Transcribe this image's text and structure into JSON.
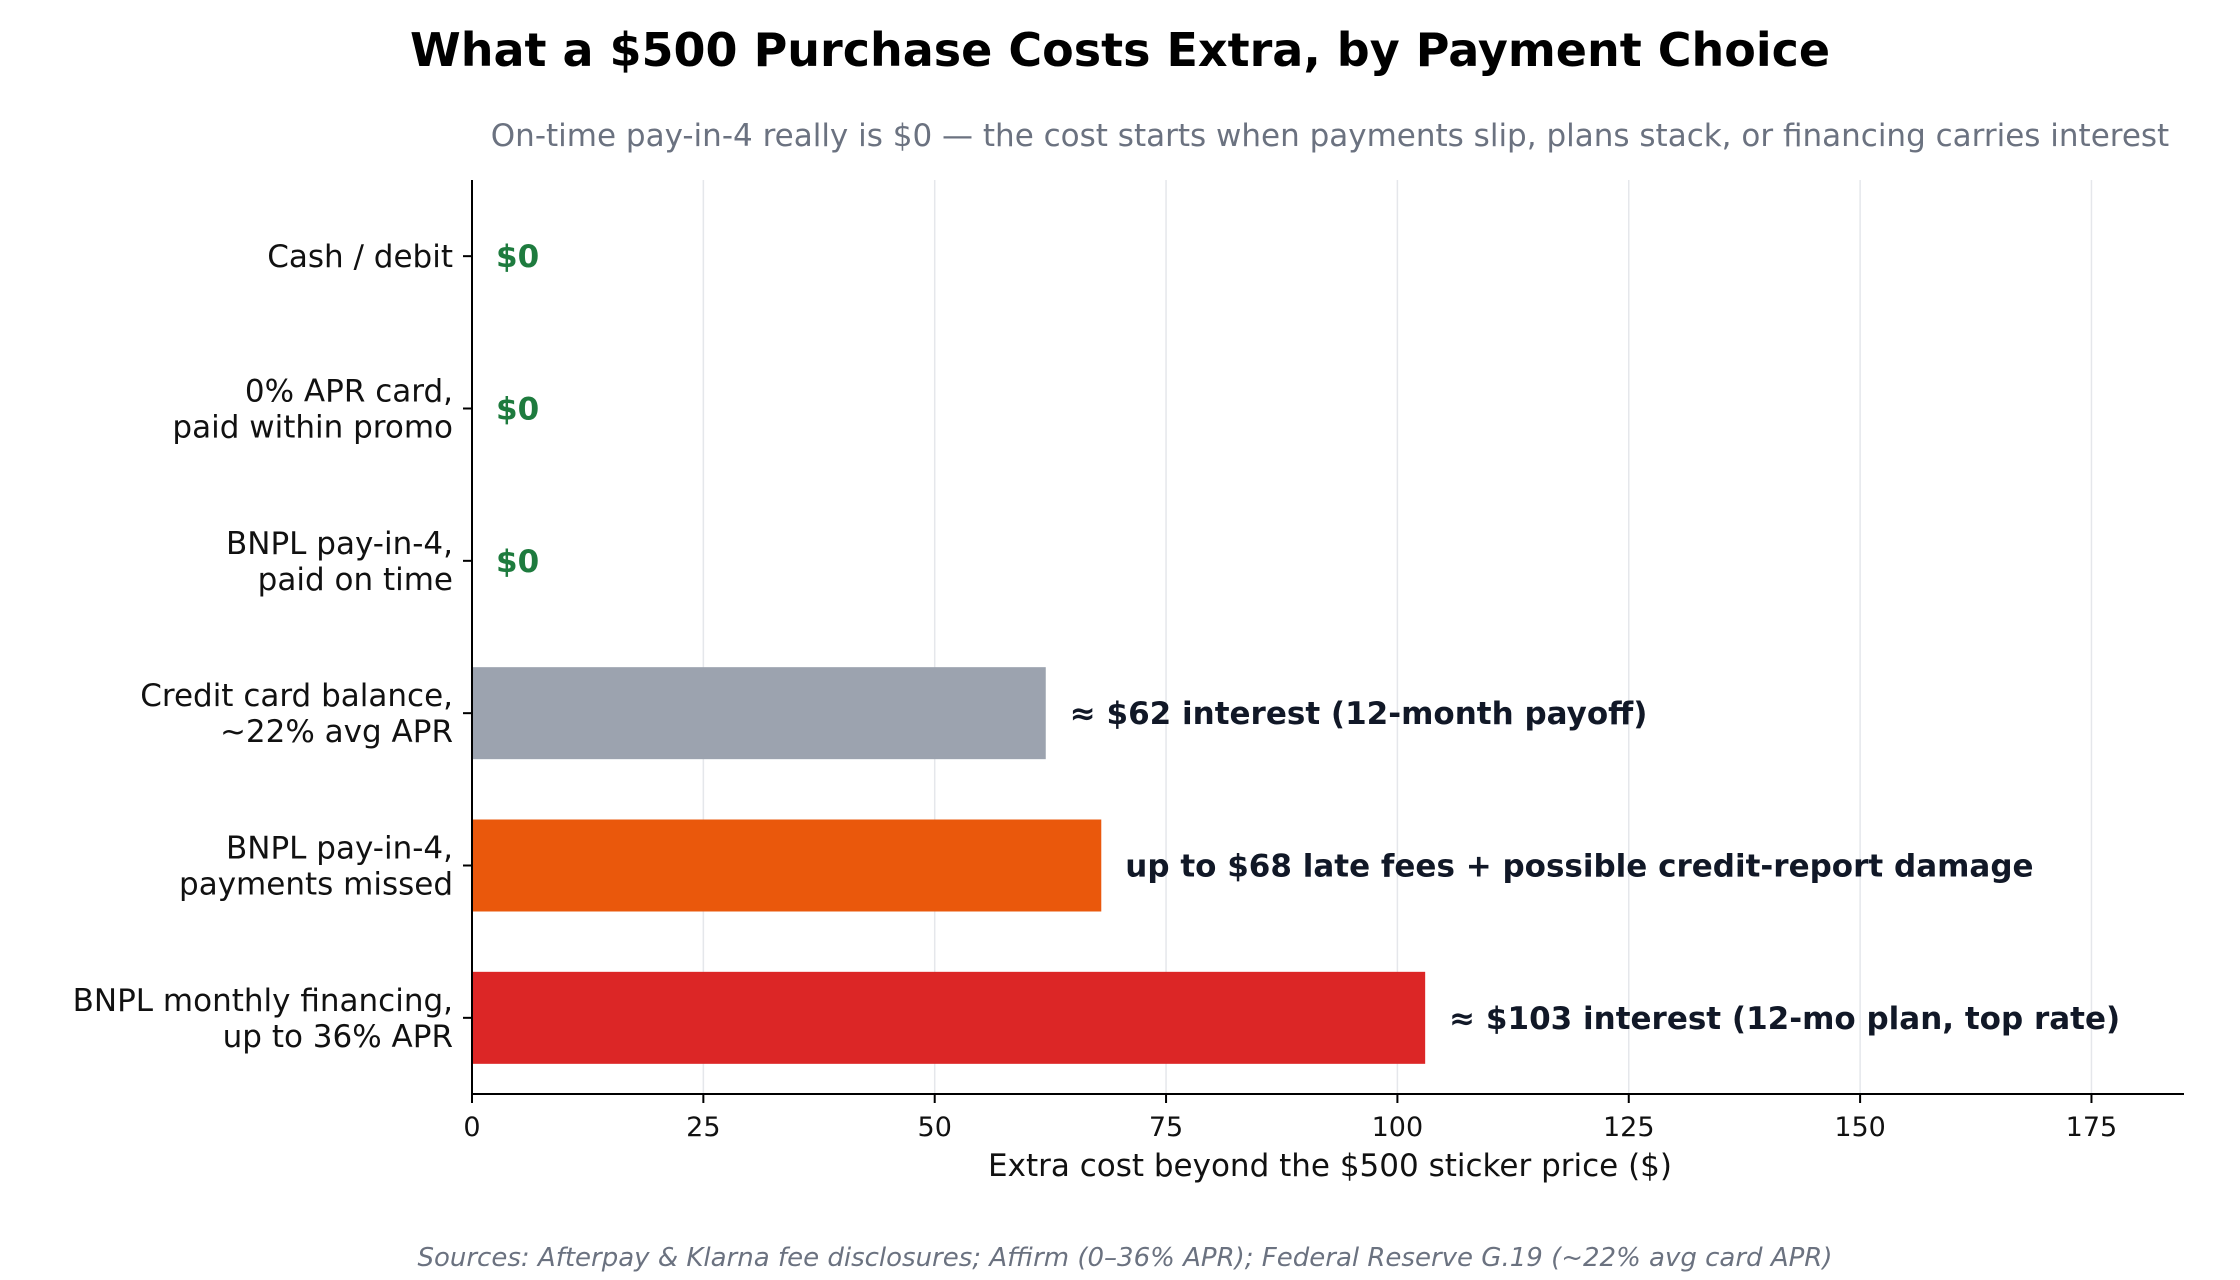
{
  "chart_data": {
    "type": "bar",
    "orientation": "horizontal",
    "title": "What a $500 Purchase Costs Extra, by Payment Choice",
    "subtitle": "On-time pay-in-4 really is $0 — the cost starts when payments slip, plans stack, or financing carries interest",
    "xlabel": "Extra cost beyond the $500 sticker price ($)",
    "xlim": [
      0,
      185
    ],
    "xticks": [
      0,
      25,
      50,
      75,
      100,
      125,
      150,
      175
    ],
    "grid": "vertical",
    "categories": [
      [
        "Cash / debit"
      ],
      [
        "0% APR card,",
        "paid within promo"
      ],
      [
        "BNPL pay-in-4,",
        "paid on time"
      ],
      [
        "Credit card balance,",
        "~22% avg APR"
      ],
      [
        "BNPL pay-in-4,",
        "payments missed"
      ],
      [
        "BNPL monthly financing,",
        "up to 36% APR"
      ]
    ],
    "values": [
      0,
      0,
      0,
      62,
      68,
      103
    ],
    "bar_colors": [
      "#1e7b3e",
      "#1e7b3e",
      "#1e7b3e",
      "#9ca3af",
      "#ea580c",
      "#dc2626"
    ],
    "data_labels": [
      "$0",
      "$0",
      "$0",
      "≈ $62 interest  (12-month payoff)",
      "up to $68 late fees  + possible credit-report damage",
      "≈ $103 interest  (12-mo plan, top rate)"
    ],
    "zero_label_color": "#1e7b3e",
    "source": "Sources: Afterpay & Klarna fee disclosures; Affirm (0–36% APR); Federal Reserve G.19 (~22% avg card APR)"
  }
}
